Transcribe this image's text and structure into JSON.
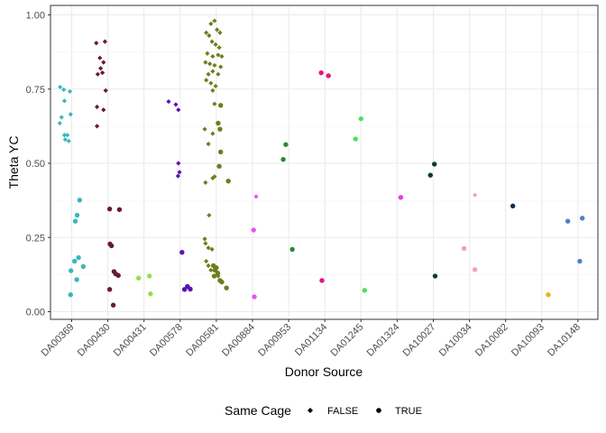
{
  "chart_data": {
    "type": "scatter",
    "title": "",
    "xlabel": "Donor Source",
    "ylabel": "Theta YC",
    "ylim": [
      0,
      1
    ],
    "yticks": [
      0,
      0.25,
      0.5,
      0.75,
      1
    ],
    "ytick_labels": [
      "0.00",
      "0.25",
      "0.50",
      "0.75",
      "1.00"
    ],
    "grid": true,
    "legend_position": "bottom",
    "legend": {
      "title": "Same Cage",
      "entries": [
        {
          "label": "FALSE",
          "shape": "diamond"
        },
        {
          "label": "TRUE",
          "shape": "circle"
        }
      ]
    },
    "categories": [
      "DA00369",
      "DA00430",
      "DA00431",
      "DA00578",
      "DA00581",
      "DA00884",
      "DA00953",
      "DA01134",
      "DA01245",
      "DA01324",
      "DA10027",
      "DA10034",
      "DA10082",
      "DA10093",
      "DA10148"
    ],
    "category_colors": {
      "DA00369": "#3cb6bd",
      "DA00430": "#6b1a2c",
      "DA00431": "#92e04b",
      "DA00578": "#5a12b5",
      "DA00581": "#6e7e1c",
      "DA00884": "#e455ef",
      "DA00953": "#2c8a2c",
      "DA01134": "#eb1279",
      "DA01245": "#4de05a",
      "DA01324": "#e63ae6",
      "DA10027": "#0f3d1f",
      "DA10034": "#f0a0c0",
      "DA10082": "#112a4d",
      "DA10093": "#e8b420",
      "DA10148": "#4d82bf"
    },
    "points": [
      {
        "category": "DA00369",
        "jitter": -0.32,
        "y": 0.757,
        "same_cage": "FALSE"
      },
      {
        "category": "DA00369",
        "jitter": -0.22,
        "y": 0.748,
        "same_cage": "FALSE"
      },
      {
        "category": "DA00369",
        "jitter": -0.05,
        "y": 0.742,
        "same_cage": "FALSE"
      },
      {
        "category": "DA00369",
        "jitter": -0.2,
        "y": 0.71,
        "same_cage": "FALSE"
      },
      {
        "category": "DA00369",
        "jitter": -0.03,
        "y": 0.665,
        "same_cage": "FALSE"
      },
      {
        "category": "DA00369",
        "jitter": -0.28,
        "y": 0.655,
        "same_cage": "FALSE"
      },
      {
        "category": "DA00369",
        "jitter": -0.33,
        "y": 0.635,
        "same_cage": "FALSE"
      },
      {
        "category": "DA00369",
        "jitter": -0.2,
        "y": 0.595,
        "same_cage": "FALSE"
      },
      {
        "category": "DA00369",
        "jitter": -0.12,
        "y": 0.595,
        "same_cage": "FALSE"
      },
      {
        "category": "DA00369",
        "jitter": -0.18,
        "y": 0.58,
        "same_cage": "FALSE"
      },
      {
        "category": "DA00369",
        "jitter": -0.08,
        "y": 0.575,
        "same_cage": "FALSE"
      },
      {
        "category": "DA00369",
        "jitter": 0.22,
        "y": 0.376,
        "same_cage": "TRUE"
      },
      {
        "category": "DA00369",
        "jitter": 0.15,
        "y": 0.325,
        "same_cage": "TRUE"
      },
      {
        "category": "DA00369",
        "jitter": 0.1,
        "y": 0.305,
        "same_cage": "TRUE"
      },
      {
        "category": "DA00369",
        "jitter": 0.19,
        "y": 0.182,
        "same_cage": "TRUE"
      },
      {
        "category": "DA00369",
        "jitter": 0.08,
        "y": 0.17,
        "same_cage": "TRUE"
      },
      {
        "category": "DA00369",
        "jitter": 0.32,
        "y": 0.152,
        "same_cage": "TRUE"
      },
      {
        "category": "DA00369",
        "jitter": -0.02,
        "y": 0.138,
        "same_cage": "TRUE"
      },
      {
        "category": "DA00369",
        "jitter": 0.14,
        "y": 0.108,
        "same_cage": "TRUE"
      },
      {
        "category": "DA00369",
        "jitter": -0.03,
        "y": 0.057,
        "same_cage": "TRUE"
      },
      {
        "category": "DA00430",
        "jitter": -0.32,
        "y": 0.905,
        "same_cage": "FALSE"
      },
      {
        "category": "DA00430",
        "jitter": -0.08,
        "y": 0.91,
        "same_cage": "FALSE"
      },
      {
        "category": "DA00430",
        "jitter": -0.22,
        "y": 0.855,
        "same_cage": "FALSE"
      },
      {
        "category": "DA00430",
        "jitter": -0.12,
        "y": 0.84,
        "same_cage": "FALSE"
      },
      {
        "category": "DA00430",
        "jitter": -0.2,
        "y": 0.82,
        "same_cage": "FALSE"
      },
      {
        "category": "DA00430",
        "jitter": -0.15,
        "y": 0.805,
        "same_cage": "FALSE"
      },
      {
        "category": "DA00430",
        "jitter": -0.28,
        "y": 0.8,
        "same_cage": "FALSE"
      },
      {
        "category": "DA00430",
        "jitter": -0.06,
        "y": 0.745,
        "same_cage": "FALSE"
      },
      {
        "category": "DA00430",
        "jitter": -0.3,
        "y": 0.69,
        "same_cage": "FALSE"
      },
      {
        "category": "DA00430",
        "jitter": -0.12,
        "y": 0.68,
        "same_cage": "FALSE"
      },
      {
        "category": "DA00430",
        "jitter": -0.3,
        "y": 0.625,
        "same_cage": "FALSE"
      },
      {
        "category": "DA00430",
        "jitter": 0.05,
        "y": 0.346,
        "same_cage": "TRUE"
      },
      {
        "category": "DA00430",
        "jitter": 0.32,
        "y": 0.344,
        "same_cage": "TRUE"
      },
      {
        "category": "DA00430",
        "jitter": 0.06,
        "y": 0.228,
        "same_cage": "TRUE"
      },
      {
        "category": "DA00430",
        "jitter": 0.1,
        "y": 0.222,
        "same_cage": "TRUE"
      },
      {
        "category": "DA00430",
        "jitter": 0.17,
        "y": 0.135,
        "same_cage": "TRUE"
      },
      {
        "category": "DA00430",
        "jitter": 0.22,
        "y": 0.127,
        "same_cage": "TRUE"
      },
      {
        "category": "DA00430",
        "jitter": 0.29,
        "y": 0.122,
        "same_cage": "TRUE"
      },
      {
        "category": "DA00430",
        "jitter": 0.05,
        "y": 0.075,
        "same_cage": "TRUE"
      },
      {
        "category": "DA00430",
        "jitter": 0.15,
        "y": 0.022,
        "same_cage": "TRUE"
      },
      {
        "category": "DA00431",
        "jitter": -0.15,
        "y": 0.113,
        "same_cage": "TRUE"
      },
      {
        "category": "DA00431",
        "jitter": 0.15,
        "y": 0.12,
        "same_cage": "TRUE"
      },
      {
        "category": "DA00431",
        "jitter": 0.18,
        "y": 0.06,
        "same_cage": "TRUE"
      },
      {
        "category": "DA00578",
        "jitter": -0.32,
        "y": 0.708,
        "same_cage": "FALSE"
      },
      {
        "category": "DA00578",
        "jitter": -0.12,
        "y": 0.698,
        "same_cage": "FALSE"
      },
      {
        "category": "DA00578",
        "jitter": -0.05,
        "y": 0.68,
        "same_cage": "FALSE"
      },
      {
        "category": "DA00578",
        "jitter": -0.05,
        "y": 0.5,
        "same_cage": "FALSE"
      },
      {
        "category": "DA00578",
        "jitter": -0.02,
        "y": 0.47,
        "same_cage": "FALSE"
      },
      {
        "category": "DA00578",
        "jitter": -0.06,
        "y": 0.457,
        "same_cage": "FALSE"
      },
      {
        "category": "DA00578",
        "jitter": 0.05,
        "y": 0.2,
        "same_cage": "TRUE"
      },
      {
        "category": "DA00578",
        "jitter": 0.12,
        "y": 0.075,
        "same_cage": "TRUE"
      },
      {
        "category": "DA00578",
        "jitter": 0.2,
        "y": 0.085,
        "same_cage": "TRUE"
      },
      {
        "category": "DA00578",
        "jitter": 0.28,
        "y": 0.076,
        "same_cage": "TRUE"
      },
      {
        "category": "DA00581",
        "jitter": -0.28,
        "y": 0.94,
        "same_cage": "FALSE"
      },
      {
        "category": "DA00581",
        "jitter": -0.15,
        "y": 0.97,
        "same_cage": "FALSE"
      },
      {
        "category": "DA00581",
        "jitter": -0.05,
        "y": 0.98,
        "same_cage": "FALSE"
      },
      {
        "category": "DA00581",
        "jitter": -0.2,
        "y": 0.93,
        "same_cage": "FALSE"
      },
      {
        "category": "DA00581",
        "jitter": 0.02,
        "y": 0.95,
        "same_cage": "FALSE"
      },
      {
        "category": "DA00581",
        "jitter": 0.1,
        "y": 0.94,
        "same_cage": "FALSE"
      },
      {
        "category": "DA00581",
        "jitter": -0.12,
        "y": 0.91,
        "same_cage": "FALSE"
      },
      {
        "category": "DA00581",
        "jitter": -0.02,
        "y": 0.9,
        "same_cage": "FALSE"
      },
      {
        "category": "DA00581",
        "jitter": 0.08,
        "y": 0.89,
        "same_cage": "FALSE"
      },
      {
        "category": "DA00581",
        "jitter": -0.25,
        "y": 0.87,
        "same_cage": "FALSE"
      },
      {
        "category": "DA00581",
        "jitter": -0.1,
        "y": 0.86,
        "same_cage": "FALSE"
      },
      {
        "category": "DA00581",
        "jitter": 0.05,
        "y": 0.865,
        "same_cage": "FALSE"
      },
      {
        "category": "DA00581",
        "jitter": 0.15,
        "y": 0.86,
        "same_cage": "FALSE"
      },
      {
        "category": "DA00581",
        "jitter": -0.3,
        "y": 0.84,
        "same_cage": "FALSE"
      },
      {
        "category": "DA00581",
        "jitter": -0.18,
        "y": 0.835,
        "same_cage": "FALSE"
      },
      {
        "category": "DA00581",
        "jitter": -0.05,
        "y": 0.83,
        "same_cage": "FALSE"
      },
      {
        "category": "DA00581",
        "jitter": 0.12,
        "y": 0.825,
        "same_cage": "FALSE"
      },
      {
        "category": "DA00581",
        "jitter": -0.22,
        "y": 0.8,
        "same_cage": "FALSE"
      },
      {
        "category": "DA00581",
        "jitter": -0.1,
        "y": 0.81,
        "same_cage": "FALSE"
      },
      {
        "category": "DA00581",
        "jitter": 0.05,
        "y": 0.8,
        "same_cage": "FALSE"
      },
      {
        "category": "DA00581",
        "jitter": -0.28,
        "y": 0.78,
        "same_cage": "FALSE"
      },
      {
        "category": "DA00581",
        "jitter": -0.15,
        "y": 0.77,
        "same_cage": "FALSE"
      },
      {
        "category": "DA00581",
        "jitter": -0.02,
        "y": 0.76,
        "same_cage": "FALSE"
      },
      {
        "category": "DA00581",
        "jitter": -0.1,
        "y": 0.745,
        "same_cage": "FALSE"
      },
      {
        "category": "DA00581",
        "jitter": -0.05,
        "y": 0.7,
        "same_cage": "FALSE"
      },
      {
        "category": "DA00581",
        "jitter": -0.32,
        "y": 0.615,
        "same_cage": "FALSE"
      },
      {
        "category": "DA00581",
        "jitter": -0.1,
        "y": 0.6,
        "same_cage": "FALSE"
      },
      {
        "category": "DA00581",
        "jitter": -0.22,
        "y": 0.565,
        "same_cage": "FALSE"
      },
      {
        "category": "DA00581",
        "jitter": -0.05,
        "y": 0.455,
        "same_cage": "FALSE"
      },
      {
        "category": "DA00581",
        "jitter": -0.1,
        "y": 0.45,
        "same_cage": "FALSE"
      },
      {
        "category": "DA00581",
        "jitter": -0.3,
        "y": 0.435,
        "same_cage": "FALSE"
      },
      {
        "category": "DA00581",
        "jitter": -0.2,
        "y": 0.325,
        "same_cage": "FALSE"
      },
      {
        "category": "DA00581",
        "jitter": -0.32,
        "y": 0.245,
        "same_cage": "FALSE"
      },
      {
        "category": "DA00581",
        "jitter": -0.3,
        "y": 0.23,
        "same_cage": "FALSE"
      },
      {
        "category": "DA00581",
        "jitter": -0.22,
        "y": 0.215,
        "same_cage": "FALSE"
      },
      {
        "category": "DA00581",
        "jitter": -0.12,
        "y": 0.21,
        "same_cage": "FALSE"
      },
      {
        "category": "DA00581",
        "jitter": -0.28,
        "y": 0.17,
        "same_cage": "FALSE"
      },
      {
        "category": "DA00581",
        "jitter": -0.22,
        "y": 0.155,
        "same_cage": "FALSE"
      },
      {
        "category": "DA00581",
        "jitter": -0.15,
        "y": 0.14,
        "same_cage": "FALSE"
      },
      {
        "category": "DA00581",
        "jitter": 0.05,
        "y": 0.12,
        "same_cage": "FALSE"
      },
      {
        "category": "DA00581",
        "jitter": 0.12,
        "y": 0.695,
        "same_cage": "TRUE"
      },
      {
        "category": "DA00581",
        "jitter": 0.05,
        "y": 0.635,
        "same_cage": "TRUE"
      },
      {
        "category": "DA00581",
        "jitter": 0.1,
        "y": 0.615,
        "same_cage": "TRUE"
      },
      {
        "category": "DA00581",
        "jitter": 0.12,
        "y": 0.538,
        "same_cage": "TRUE"
      },
      {
        "category": "DA00581",
        "jitter": 0.08,
        "y": 0.49,
        "same_cage": "TRUE"
      },
      {
        "category": "DA00581",
        "jitter": 0.33,
        "y": 0.44,
        "same_cage": "TRUE"
      },
      {
        "category": "DA00581",
        "jitter": -0.08,
        "y": 0.155,
        "same_cage": "TRUE"
      },
      {
        "category": "DA00581",
        "jitter": 0.0,
        "y": 0.148,
        "same_cage": "TRUE"
      },
      {
        "category": "DA00581",
        "jitter": -0.04,
        "y": 0.14,
        "same_cage": "TRUE"
      },
      {
        "category": "DA00581",
        "jitter": 0.04,
        "y": 0.13,
        "same_cage": "TRUE"
      },
      {
        "category": "DA00581",
        "jitter": -0.06,
        "y": 0.12,
        "same_cage": "TRUE"
      },
      {
        "category": "DA00581",
        "jitter": 0.1,
        "y": 0.105,
        "same_cage": "TRUE"
      },
      {
        "category": "DA00581",
        "jitter": 0.15,
        "y": 0.1,
        "same_cage": "TRUE"
      },
      {
        "category": "DA00581",
        "jitter": 0.28,
        "y": 0.08,
        "same_cage": "TRUE"
      },
      {
        "category": "DA00884",
        "jitter": 0.1,
        "y": 0.388,
        "same_cage": "FALSE"
      },
      {
        "category": "DA00884",
        "jitter": 0.03,
        "y": 0.275,
        "same_cage": "TRUE"
      },
      {
        "category": "DA00884",
        "jitter": 0.05,
        "y": 0.05,
        "same_cage": "TRUE"
      },
      {
        "category": "DA00953",
        "jitter": -0.15,
        "y": 0.513,
        "same_cage": "TRUE"
      },
      {
        "category": "DA00953",
        "jitter": -0.08,
        "y": 0.563,
        "same_cage": "TRUE"
      },
      {
        "category": "DA00953",
        "jitter": 0.1,
        "y": 0.21,
        "same_cage": "TRUE"
      },
      {
        "category": "DA01134",
        "jitter": -0.1,
        "y": 0.805,
        "same_cage": "TRUE"
      },
      {
        "category": "DA01134",
        "jitter": 0.1,
        "y": 0.795,
        "same_cage": "TRUE"
      },
      {
        "category": "DA01134",
        "jitter": -0.08,
        "y": 0.105,
        "same_cage": "TRUE"
      },
      {
        "category": "DA01245",
        "jitter": -0.15,
        "y": 0.582,
        "same_cage": "TRUE"
      },
      {
        "category": "DA01245",
        "jitter": 0.0,
        "y": 0.65,
        "same_cage": "TRUE"
      },
      {
        "category": "DA01245",
        "jitter": 0.1,
        "y": 0.072,
        "same_cage": "TRUE"
      },
      {
        "category": "DA01324",
        "jitter": 0.1,
        "y": 0.385,
        "same_cage": "TRUE"
      },
      {
        "category": "DA10027",
        "jitter": -0.08,
        "y": 0.46,
        "same_cage": "TRUE"
      },
      {
        "category": "DA10027",
        "jitter": 0.03,
        "y": 0.497,
        "same_cage": "TRUE"
      },
      {
        "category": "DA10027",
        "jitter": 0.05,
        "y": 0.12,
        "same_cage": "TRUE"
      },
      {
        "category": "DA10034",
        "jitter": 0.15,
        "y": 0.393,
        "same_cage": "FALSE"
      },
      {
        "category": "DA10034",
        "jitter": -0.15,
        "y": 0.213,
        "same_cage": "TRUE"
      },
      {
        "category": "DA10034",
        "jitter": 0.15,
        "y": 0.142,
        "same_cage": "TRUE"
      },
      {
        "category": "DA10082",
        "jitter": 0.2,
        "y": 0.356,
        "same_cage": "TRUE"
      },
      {
        "category": "DA10093",
        "jitter": 0.18,
        "y": 0.057,
        "same_cage": "TRUE"
      },
      {
        "category": "DA10148",
        "jitter": -0.28,
        "y": 0.305,
        "same_cage": "TRUE"
      },
      {
        "category": "DA10148",
        "jitter": 0.12,
        "y": 0.315,
        "same_cage": "TRUE"
      },
      {
        "category": "DA10148",
        "jitter": 0.05,
        "y": 0.17,
        "same_cage": "TRUE"
      }
    ]
  }
}
